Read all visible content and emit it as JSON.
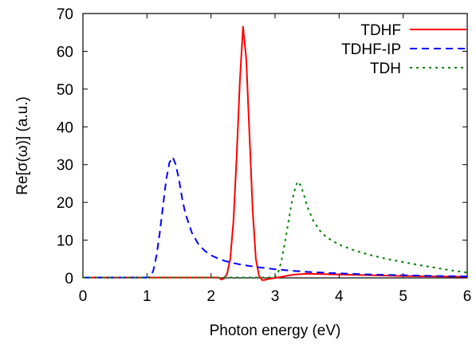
{
  "chart_data": {
    "type": "line",
    "xlabel": "Photon energy (eV)",
    "ylabel": "Re[σ(ω)] (a.u.)",
    "xlim": [
      0,
      6
    ],
    "ylim": [
      0,
      70
    ],
    "x_ticks": [
      "0",
      "1",
      "2",
      "3",
      "4",
      "5",
      "6"
    ],
    "y_ticks": [
      "0",
      "10",
      "20",
      "30",
      "40",
      "50",
      "60",
      "70"
    ],
    "grid": false,
    "legend_position": "top-right",
    "series": [
      {
        "name": "TDHF",
        "color": "#ff0000",
        "style": "solid",
        "points": [
          [
            0,
            0.1
          ],
          [
            0.5,
            0.1
          ],
          [
            1.0,
            0.1
          ],
          [
            1.5,
            0.1
          ],
          [
            2.0,
            0.1
          ],
          [
            2.12,
            0.1
          ],
          [
            2.16,
            -0.4
          ],
          [
            2.2,
            -0.2
          ],
          [
            2.25,
            1.0
          ],
          [
            2.3,
            5.0
          ],
          [
            2.35,
            15.0
          ],
          [
            2.4,
            32.0
          ],
          [
            2.45,
            52.0
          ],
          [
            2.5,
            66.5
          ],
          [
            2.55,
            58.0
          ],
          [
            2.6,
            38.0
          ],
          [
            2.65,
            18.0
          ],
          [
            2.7,
            5.0
          ],
          [
            2.75,
            0.5
          ],
          [
            2.8,
            -0.6
          ],
          [
            2.85,
            -0.5
          ],
          [
            2.9,
            -0.3
          ],
          [
            3.0,
            0.0
          ],
          [
            3.1,
            0.3
          ],
          [
            3.2,
            0.6
          ],
          [
            3.3,
            0.9
          ],
          [
            3.5,
            1.1
          ],
          [
            3.75,
            1.0
          ],
          [
            4.0,
            0.9
          ],
          [
            4.5,
            0.7
          ],
          [
            5.0,
            0.5
          ],
          [
            5.5,
            0.4
          ],
          [
            6.0,
            0.3
          ]
        ]
      },
      {
        "name": "TDHF-IP",
        "color": "#0000ff",
        "style": "dashed",
        "points": [
          [
            0,
            0.1
          ],
          [
            0.5,
            0.1
          ],
          [
            1.0,
            0.1
          ],
          [
            1.05,
            0.2
          ],
          [
            1.1,
            2.0
          ],
          [
            1.15,
            6.0
          ],
          [
            1.2,
            12.0
          ],
          [
            1.25,
            19.0
          ],
          [
            1.3,
            26.0
          ],
          [
            1.35,
            30.5
          ],
          [
            1.4,
            32.0
          ],
          [
            1.45,
            30.0
          ],
          [
            1.5,
            26.0
          ],
          [
            1.55,
            21.0
          ],
          [
            1.6,
            17.0
          ],
          [
            1.7,
            12.0
          ],
          [
            1.8,
            9.0
          ],
          [
            1.9,
            7.2
          ],
          [
            2.0,
            6.0
          ],
          [
            2.1,
            5.2
          ],
          [
            2.2,
            4.6
          ],
          [
            2.3,
            4.1
          ],
          [
            2.5,
            3.4
          ],
          [
            2.75,
            2.8
          ],
          [
            3.0,
            2.3
          ],
          [
            3.25,
            1.9
          ],
          [
            3.5,
            1.6
          ],
          [
            4.0,
            1.2
          ],
          [
            4.5,
            0.9
          ],
          [
            5.0,
            0.7
          ],
          [
            5.5,
            0.5
          ],
          [
            6.0,
            0.4
          ]
        ]
      },
      {
        "name": "TDH",
        "color": "#008000",
        "style": "dotted",
        "points": [
          [
            0,
            0.1
          ],
          [
            0.5,
            0.1
          ],
          [
            1.0,
            0.1
          ],
          [
            1.5,
            0.1
          ],
          [
            2.0,
            0.1
          ],
          [
            2.5,
            0.1
          ],
          [
            2.9,
            0.1
          ],
          [
            3.0,
            0.3
          ],
          [
            3.05,
            1.5
          ],
          [
            3.1,
            4.5
          ],
          [
            3.15,
            9.0
          ],
          [
            3.2,
            14.0
          ],
          [
            3.25,
            19.0
          ],
          [
            3.3,
            23.0
          ],
          [
            3.35,
            25.5
          ],
          [
            3.4,
            24.5
          ],
          [
            3.45,
            22.0
          ],
          [
            3.5,
            19.0
          ],
          [
            3.6,
            15.0
          ],
          [
            3.7,
            12.5
          ],
          [
            3.8,
            10.8
          ],
          [
            4.0,
            8.8
          ],
          [
            4.25,
            7.2
          ],
          [
            4.5,
            6.0
          ],
          [
            4.75,
            5.0
          ],
          [
            5.0,
            4.2
          ],
          [
            5.25,
            3.4
          ],
          [
            5.5,
            2.7
          ],
          [
            5.75,
            2.0
          ],
          [
            6.0,
            1.4
          ]
        ]
      }
    ]
  }
}
